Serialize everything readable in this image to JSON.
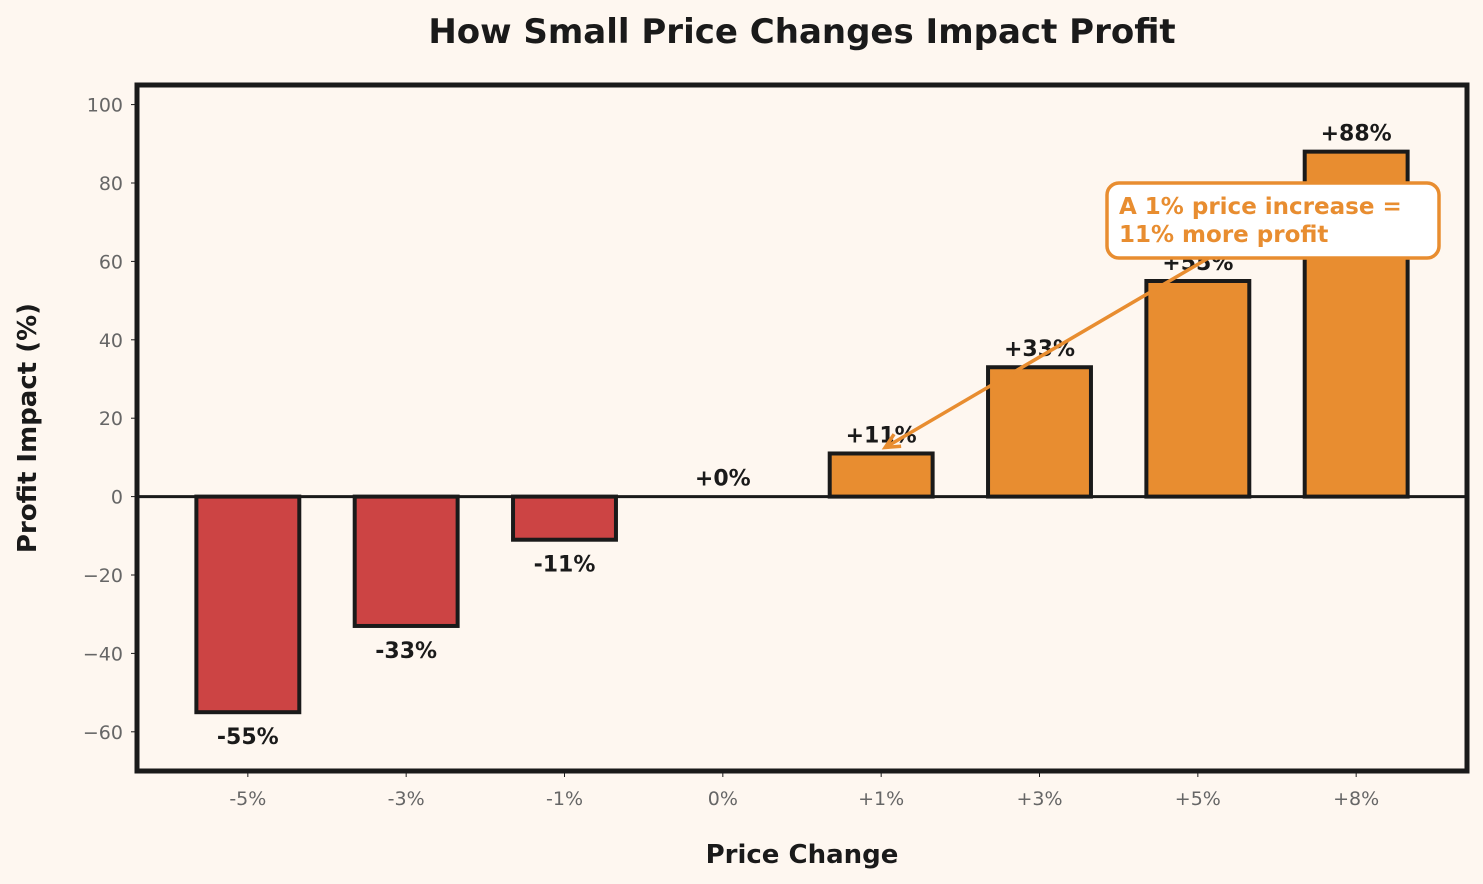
{
  "chart_data": {
    "type": "bar",
    "title": "How Small Price Changes Impact Profit",
    "xlabel": "Price Change",
    "ylabel": "Profit Impact (%)",
    "categories": [
      "-5%",
      "-3%",
      "-1%",
      "0%",
      "+1%",
      "+3%",
      "+5%",
      "+8%"
    ],
    "values": [
      -55,
      -33,
      -11,
      0,
      11,
      33,
      55,
      88
    ],
    "data_labels": [
      "-55%",
      "-33%",
      "-11%",
      "+0%",
      "+11%",
      "+33%",
      "+55%",
      "+88%"
    ],
    "ylim": [
      -70,
      105
    ],
    "yticks": [
      -60,
      -40,
      -20,
      0,
      20,
      40,
      60,
      80,
      100
    ],
    "ytick_labels": [
      "−60",
      "−40",
      "−20",
      "0",
      "20",
      "40",
      "60",
      "80",
      "100"
    ],
    "grid": false,
    "colors": {
      "negative": "#cc4444",
      "positive": "#e88d30",
      "edge": "#1a1a1a",
      "background": "#fef7f0"
    },
    "annotation": {
      "text_lines": [
        "A 1% price increase =",
        "11% more profit"
      ],
      "points_to_category": "+1%",
      "points_to_value": 11,
      "color": "#e88d30"
    }
  }
}
